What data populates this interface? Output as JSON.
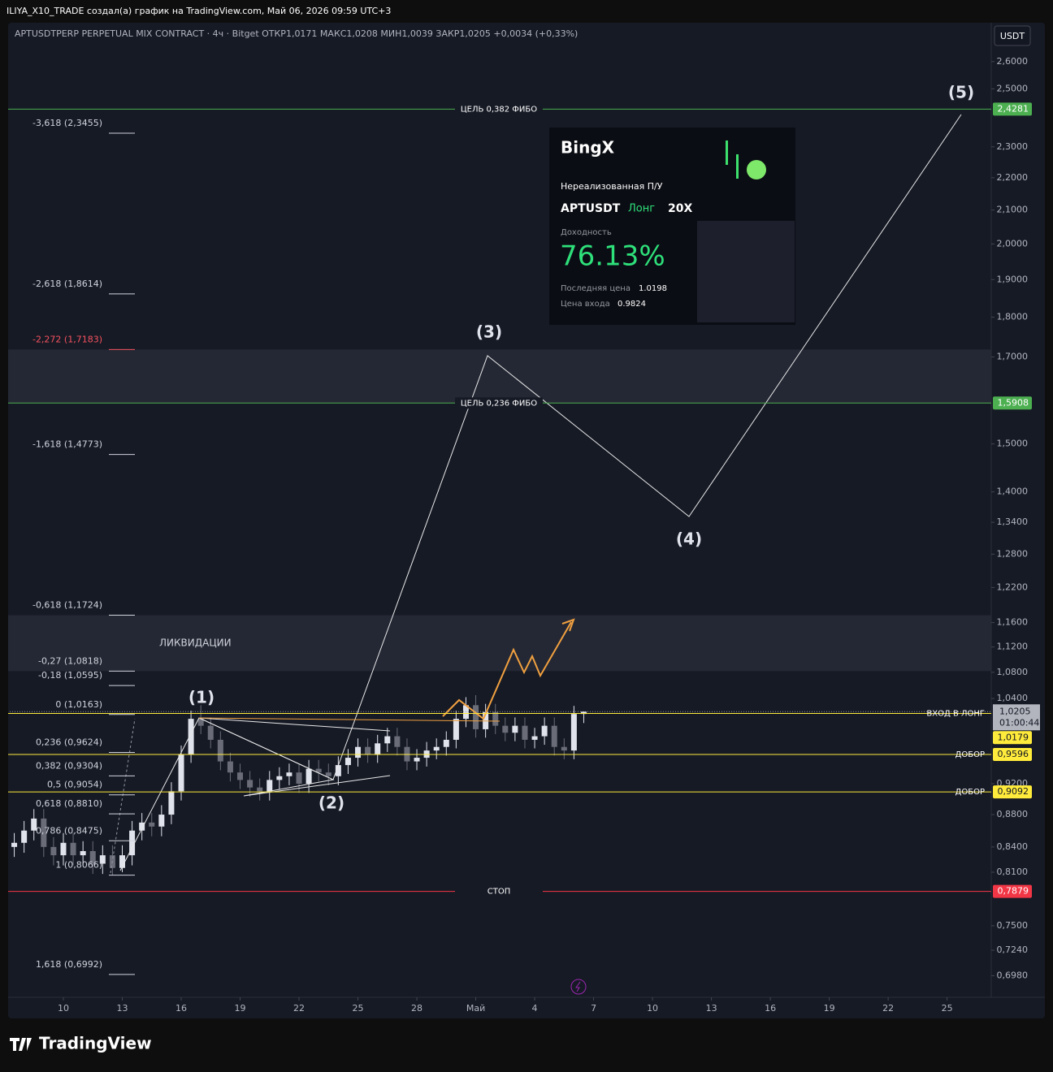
{
  "header": {
    "title": "ILIYA_X10_TRADE создал(а) график на TradingView.com, Май 06, 2026 09:59 UTC+3",
    "legend": "APTUSDTPERP PERPETUAL MIX CONTRACT · 4ч · Bitget  ОТКР1,0171  МАКС1,0208  МИН1,0039  ЗАКР1,0205  +0,0034 (+0,33%)",
    "currency": "USDT"
  },
  "chart_data": {
    "type": "candlestick",
    "log_scale": true,
    "grid": false,
    "up_color": "#e0e3eb",
    "down_color": "#6a6d78",
    "xlim": [
      -2.73,
      47.25
    ],
    "ylim": [
      0.679,
      2.743
    ],
    "xticks": [
      {
        "value": 0,
        "label": "10"
      },
      {
        "value": 3,
        "label": "13"
      },
      {
        "value": 6,
        "label": "16"
      },
      {
        "value": 9,
        "label": "19"
      },
      {
        "value": 12,
        "label": "22"
      },
      {
        "value": 15,
        "label": "25"
      },
      {
        "value": 18,
        "label": "28"
      },
      {
        "value": 21,
        "label": "Май"
      },
      {
        "value": 24,
        "label": "4"
      },
      {
        "value": 27,
        "label": "7"
      },
      {
        "value": 30,
        "label": "10"
      },
      {
        "value": 33,
        "label": "13"
      },
      {
        "value": 36,
        "label": "16"
      },
      {
        "value": 39,
        "label": "19"
      },
      {
        "value": 42,
        "label": "22"
      },
      {
        "value": 45,
        "label": "25"
      }
    ],
    "yticks": [
      {
        "value": 2.6,
        "label": "2,6000"
      },
      {
        "value": 2.5,
        "label": "2,5000"
      },
      {
        "value": 2.3,
        "label": "2,3000"
      },
      {
        "value": 2.2,
        "label": "2,2000"
      },
      {
        "value": 2.1,
        "label": "2,1000"
      },
      {
        "value": 2.0,
        "label": "2,0000"
      },
      {
        "value": 1.9,
        "label": "1,9000"
      },
      {
        "value": 1.8,
        "label": "1,8000"
      },
      {
        "value": 1.7,
        "label": "1,7000"
      },
      {
        "value": 1.5,
        "label": "1,5000"
      },
      {
        "value": 1.4,
        "label": "1,4000"
      },
      {
        "value": 1.34,
        "label": "1,3400"
      },
      {
        "value": 1.28,
        "label": "1,2800"
      },
      {
        "value": 1.22,
        "label": "1,2200"
      },
      {
        "value": 1.16,
        "label": "1,1600"
      },
      {
        "value": 1.12,
        "label": "1,1200"
      },
      {
        "value": 1.08,
        "label": "1,0800"
      },
      {
        "value": 1.04,
        "label": "1,0400"
      },
      {
        "value": 0.92,
        "label": "0,9200"
      },
      {
        "value": 0.88,
        "label": "0,8800"
      },
      {
        "value": 0.84,
        "label": "0,8400"
      },
      {
        "value": 0.81,
        "label": "0,8100"
      },
      {
        "value": 0.75,
        "label": "0,7500"
      },
      {
        "value": 0.724,
        "label": "0,7240"
      },
      {
        "value": 0.698,
        "label": "0,6980"
      }
    ],
    "x": [
      -2.5,
      -2,
      -1.5,
      -1,
      -0.5,
      0,
      0.5,
      1,
      1.5,
      2,
      2.5,
      3,
      3.5,
      4,
      4.5,
      5,
      5.5,
      6,
      6.5,
      7,
      7.5,
      8,
      8.5,
      9,
      9.5,
      10,
      10.5,
      11,
      11.5,
      12,
      12.5,
      13,
      13.5,
      14,
      14.5,
      15,
      15.5,
      16,
      16.5,
      17,
      17.5,
      18,
      18.5,
      19,
      19.5,
      20,
      20.5,
      21,
      21.5,
      22,
      22.5,
      23,
      23.5,
      24,
      24.5,
      25,
      25.5,
      26,
      26.5
    ],
    "open": [
      0.84,
      0.845,
      0.86,
      0.875,
      0.84,
      0.83,
      0.845,
      0.83,
      0.835,
      0.82,
      0.83,
      0.815,
      0.83,
      0.86,
      0.87,
      0.865,
      0.88,
      0.91,
      0.96,
      1.01,
      1.0,
      0.98,
      0.95,
      0.935,
      0.925,
      0.915,
      0.91,
      0.925,
      0.93,
      0.935,
      0.92,
      0.94,
      0.935,
      0.93,
      0.945,
      0.955,
      0.97,
      0.96,
      0.975,
      0.985,
      0.97,
      0.95,
      0.955,
      0.965,
      0.97,
      0.98,
      1.01,
      1.03,
      0.995,
      1.02,
      1.0,
      0.99,
      1.0,
      0.98,
      0.985,
      1.0,
      0.97,
      0.965,
      1.0171
    ],
    "high": [
      0.857,
      0.872,
      0.887,
      0.887,
      0.852,
      0.857,
      0.857,
      0.847,
      0.847,
      0.842,
      0.842,
      0.842,
      0.872,
      0.882,
      0.882,
      0.892,
      0.922,
      0.972,
      1.022,
      1.03,
      1.012,
      0.992,
      0.962,
      0.947,
      0.937,
      0.927,
      0.937,
      0.942,
      0.947,
      0.947,
      0.952,
      0.952,
      0.947,
      0.957,
      0.967,
      0.982,
      0.982,
      0.987,
      0.997,
      0.997,
      0.982,
      0.967,
      0.977,
      0.982,
      0.992,
      1.022,
      1.042,
      1.045,
      1.032,
      1.032,
      1.012,
      1.012,
      1.012,
      0.997,
      1.012,
      1.012,
      0.982,
      1.029,
      1.0208
    ],
    "low": [
      0.828,
      0.833,
      0.848,
      0.828,
      0.818,
      0.818,
      0.818,
      0.818,
      0.808,
      0.808,
      0.8066,
      0.81,
      0.818,
      0.848,
      0.853,
      0.853,
      0.868,
      0.898,
      0.948,
      0.988,
      0.968,
      0.938,
      0.923,
      0.913,
      0.903,
      0.898,
      0.898,
      0.913,
      0.918,
      0.908,
      0.908,
      0.923,
      0.918,
      0.918,
      0.933,
      0.943,
      0.948,
      0.948,
      0.963,
      0.958,
      0.938,
      0.938,
      0.943,
      0.953,
      0.958,
      0.968,
      0.998,
      0.983,
      0.983,
      0.988,
      0.978,
      0.978,
      0.968,
      0.968,
      0.973,
      0.958,
      0.953,
      0.953,
      1.0039
    ],
    "close": [
      0.845,
      0.86,
      0.875,
      0.84,
      0.83,
      0.845,
      0.83,
      0.835,
      0.82,
      0.83,
      0.815,
      0.83,
      0.86,
      0.87,
      0.865,
      0.88,
      0.91,
      0.96,
      1.01,
      1.0,
      0.98,
      0.95,
      0.935,
      0.925,
      0.915,
      0.91,
      0.925,
      0.93,
      0.935,
      0.92,
      0.94,
      0.935,
      0.93,
      0.945,
      0.955,
      0.97,
      0.96,
      0.975,
      0.985,
      0.97,
      0.95,
      0.955,
      0.965,
      0.97,
      0.98,
      1.01,
      1.03,
      0.995,
      1.02,
      1.0,
      0.99,
      1.0,
      0.98,
      0.985,
      1.0,
      0.97,
      0.965,
      1.0171,
      1.0205
    ],
    "zones": [
      {
        "from": 1.5908,
        "to": 1.7183
      },
      {
        "from": 1.0818,
        "to": 1.1724,
        "label": "ЛИКВИДАЦИИ"
      }
    ],
    "levels": [
      {
        "label": "ЦЕЛЬ 0,382 ФИБО",
        "value": 2.4281,
        "value_label": "2,4281",
        "color": "#4caf50",
        "align": "center"
      },
      {
        "label": "ЦЕЛЬ 0,236 ФИБО",
        "value": 1.5908,
        "value_label": "1,5908",
        "color": "#4caf50",
        "align": "center"
      },
      {
        "label": "ВХОД В ЛОНГ",
        "value": 1.0179,
        "value_label": "1,0179",
        "color": "#ffeb3b",
        "align": "right"
      },
      {
        "label": "ДОБОР",
        "value": 0.9596,
        "value_label": "0,9596",
        "color": "#ffeb3b",
        "align": "right"
      },
      {
        "label": "ДОБОР",
        "value": 0.9092,
        "value_label": "0,9092",
        "color": "#ffeb3b",
        "align": "right"
      },
      {
        "label": "СТОП",
        "value": 0.7879,
        "value_label": "0,7879",
        "color": "#f23645",
        "align": "center"
      }
    ],
    "last_price": {
      "value": 1.0205,
      "label": "1,0205",
      "timer": "01:00:44"
    },
    "fib_levels": [
      {
        "label": "-3,618 (2,3455)",
        "value": 2.3455,
        "color": "#d1d4dc"
      },
      {
        "label": "-2,618 (1,8614)",
        "value": 1.8614,
        "color": "#d1d4dc"
      },
      {
        "label": "-2,272 (1,7183)",
        "value": 1.7183,
        "color": "#f7525f"
      },
      {
        "label": "-1,618 (1,4773)",
        "value": 1.4773,
        "color": "#d1d4dc"
      },
      {
        "label": "-0,618 (1,1724)",
        "value": 1.1724,
        "color": "#d1d4dc"
      },
      {
        "label": "-0,27 (1,0818)",
        "value": 1.0818,
        "color": "#d1d4dc"
      },
      {
        "label": "-0,18 (1,0595)",
        "value": 1.0595,
        "color": "#d1d4dc"
      },
      {
        "label": "0 (1,0163)",
        "value": 1.0163,
        "color": "#d1d4dc"
      },
      {
        "label": "0,236 (0,9624)",
        "value": 0.9624,
        "color": "#d1d4dc"
      },
      {
        "label": "0,382 (0,9304)",
        "value": 0.9304,
        "color": "#d1d4dc"
      },
      {
        "label": "0,5 (0,9054)",
        "value": 0.9054,
        "color": "#d1d4dc"
      },
      {
        "label": "0,618 (0,8810)",
        "value": 0.881,
        "color": "#d1d4dc"
      },
      {
        "label": "0,786 (0,8475)",
        "value": 0.8475,
        "color": "#d1d4dc"
      },
      {
        "label": "1 (0,8066)",
        "value": 0.8066,
        "color": "#d1d4dc"
      },
      {
        "label": "1,618 (0,6992)",
        "value": 0.6992,
        "color": "#d1d4dc"
      }
    ],
    "wave_labels": [
      "(1)",
      "(2)",
      "(3)",
      "(4)",
      "(5)"
    ]
  },
  "card": {
    "brand": "BingX",
    "title": "Нереализованная П/У",
    "symbol": "APTUSDT",
    "side": "Лонг",
    "leverage": "20X",
    "roi_label": "Доходность",
    "roi": "76.13%",
    "last_label": "Последняя цена",
    "last": "1.0198",
    "entry_label": "Цена входа",
    "entry": "0.9824"
  },
  "footer": {
    "brand": "TradingView"
  }
}
